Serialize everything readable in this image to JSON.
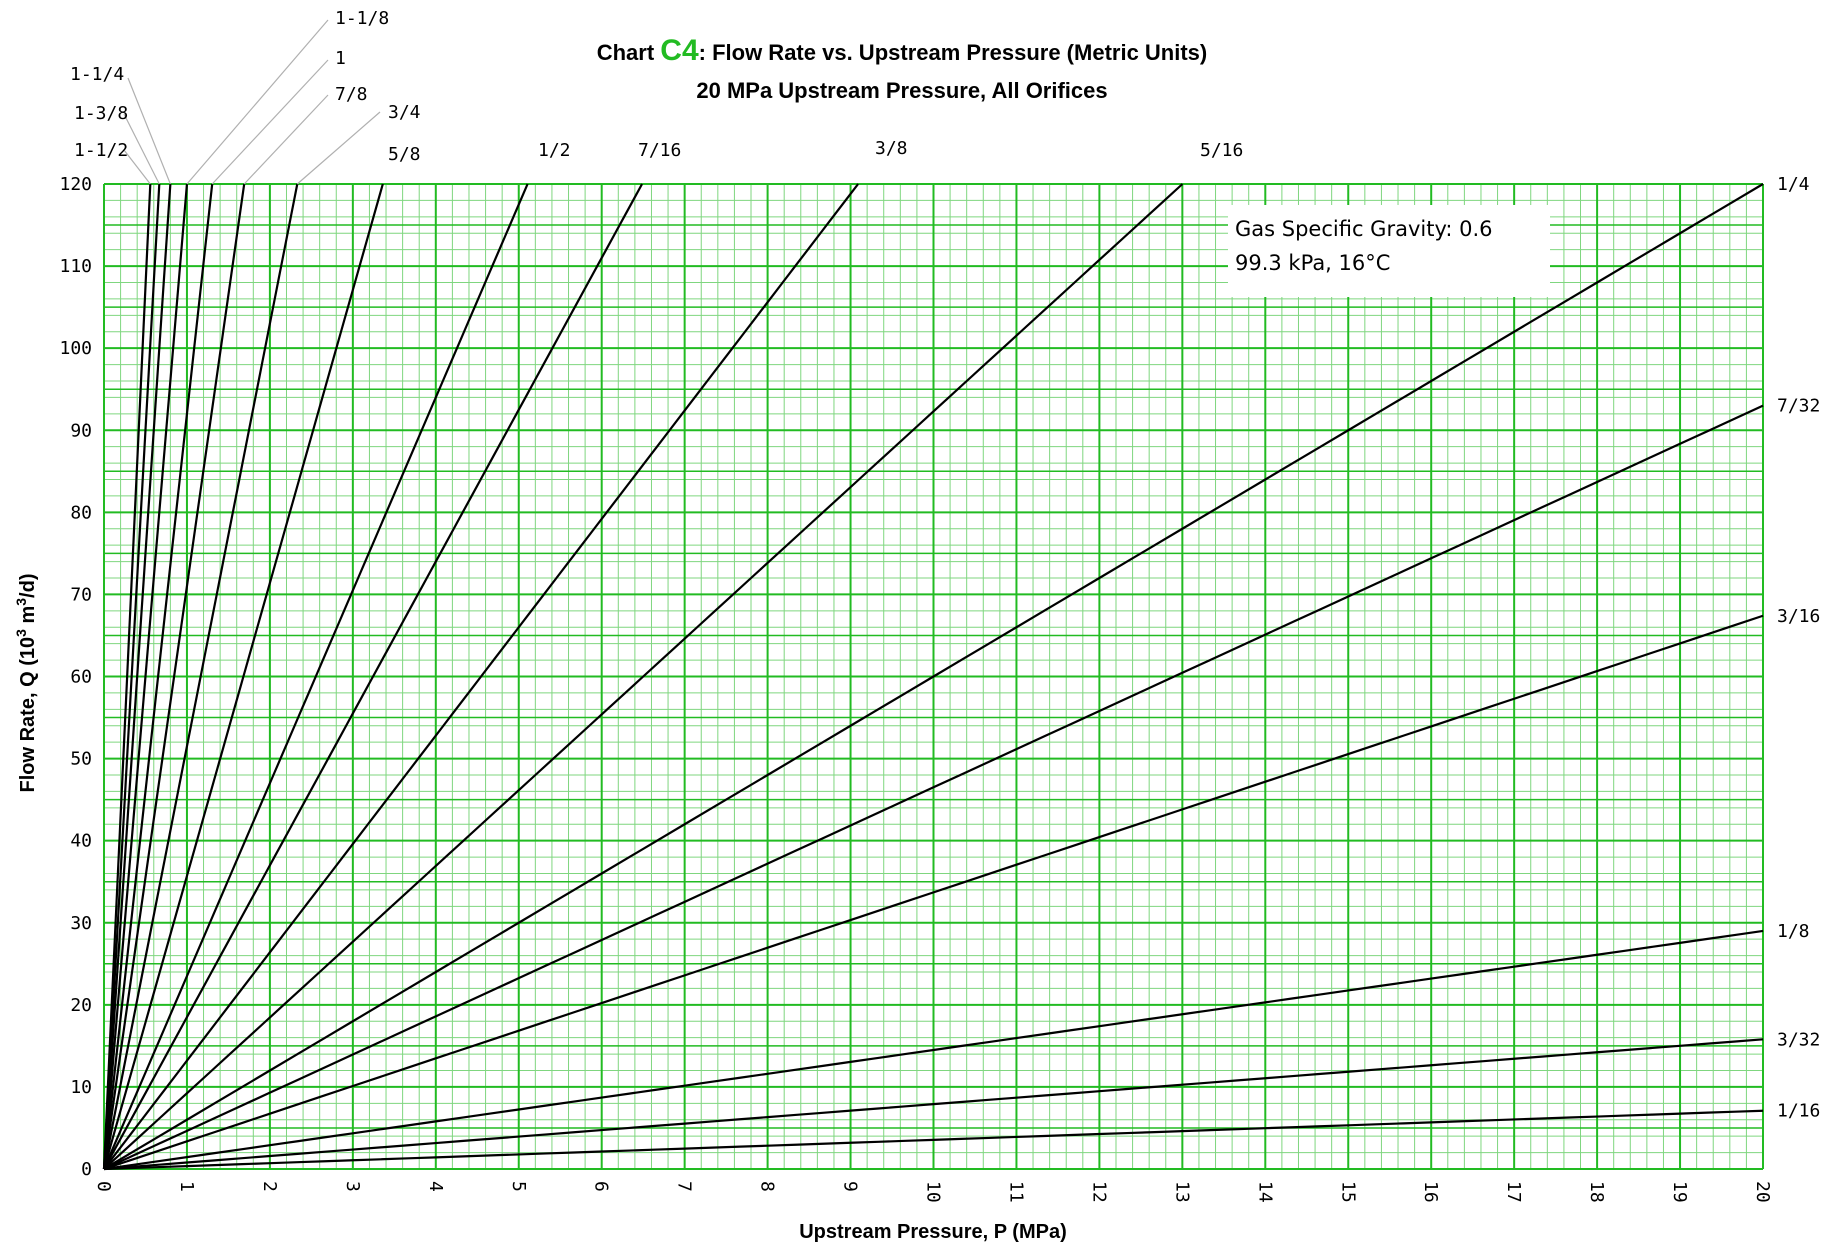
{
  "title": {
    "prefix": "Chart ",
    "accent": "C4",
    "rest": ": Flow Rate vs. Upstream Pressure (Metric Units)",
    "subtitle": "20 MPa Upstream Pressure, All Orifices"
  },
  "colors": {
    "grid_major": "#22bb22",
    "grid_minor": "#7fd67f",
    "accent": "#22bb22",
    "curve": "#000000",
    "leader": "#b0b0b0"
  },
  "note": {
    "line1": "Gas Specific Gravity: 0.6",
    "line2": "99.3 kPa, 16°C"
  },
  "chart_data": {
    "type": "line",
    "xlabel": "Upstream Pressure, P (MPa)",
    "ylabel_main": "Flow Rate, Q (10",
    "ylabel_sup1": "3",
    "ylabel_mid": " m",
    "ylabel_sup2": "3",
    "ylabel_end": "/d)",
    "xlim": [
      0,
      20
    ],
    "ylim": [
      0,
      120
    ],
    "x_ticks": [
      "0",
      "1",
      "2",
      "3",
      "4",
      "5",
      "6",
      "7",
      "8",
      "9",
      "10",
      "11",
      "12",
      "13",
      "14",
      "15",
      "16",
      "17",
      "18",
      "19",
      "20"
    ],
    "y_ticks": [
      "0",
      "10",
      "20",
      "30",
      "40",
      "50",
      "60",
      "70",
      "80",
      "90",
      "100",
      "110",
      "120"
    ],
    "grid": true,
    "series": [
      {
        "name": "1/16",
        "k": 0.355,
        "exp": 1.0
      },
      {
        "name": "3/32",
        "k": 0.79,
        "exp": 1.0
      },
      {
        "name": "1/8",
        "k": 1.45,
        "exp": 1.0
      },
      {
        "name": "3/16",
        "k": 3.37,
        "exp": 1.0
      },
      {
        "name": "7/32",
        "k": 4.65,
        "exp": 1.0
      },
      {
        "name": "1/4",
        "k": 6.0,
        "exp": 1.0
      },
      {
        "name": "5/16",
        "k": 9.23,
        "exp": 1.0
      },
      {
        "name": "3/8",
        "k": 13.2,
        "exp": 1.0
      },
      {
        "name": "7/16",
        "k": 18.5,
        "exp": 1.0
      },
      {
        "name": "1/2",
        "k": 23.5,
        "exp": 1.0
      },
      {
        "name": "5/8",
        "k": 35.7,
        "exp": 1.0
      },
      {
        "name": "3/4",
        "k": 51.5,
        "exp": 1.0
      },
      {
        "name": "7/8",
        "k": 71.0,
        "exp": 1.0
      },
      {
        "name": "1",
        "k": 92.0,
        "exp": 1.0
      },
      {
        "name": "1-1/8",
        "k": 120.0,
        "exp": 1.0
      },
      {
        "name": "1-1/4",
        "k": 150.0,
        "exp": 1.0
      },
      {
        "name": "1-3/8",
        "k": 180.0,
        "exp": 1.0
      },
      {
        "name": "1-1/2",
        "k": 215.0,
        "exp": 1.0
      }
    ]
  }
}
